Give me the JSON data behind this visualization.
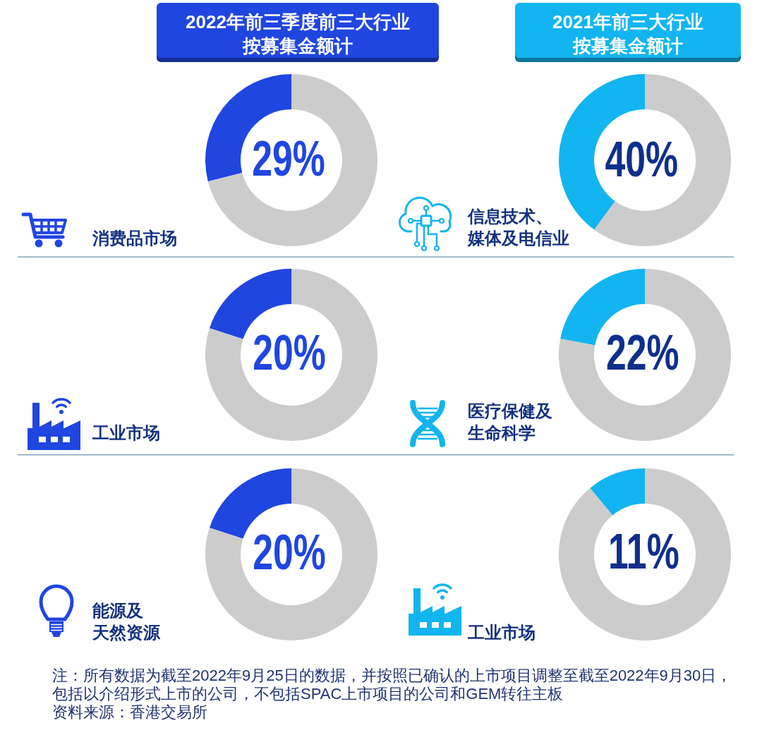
{
  "chart_data": [
    {
      "type": "donut",
      "title": "2022年前三季度前三大行业按募集金额计",
      "categories": [
        "消费品市场",
        null
      ],
      "values": [
        29,
        71
      ],
      "colors": [
        "#2046e0",
        "#cccccc"
      ],
      "value_labels": [
        "29%",
        null
      ]
    },
    {
      "type": "donut",
      "title": "2021年前三大行业按募集金额计",
      "categories": [
        "信息技术、媒体及电信业",
        null
      ],
      "values": [
        40,
        60
      ],
      "colors": [
        "#12b5ef",
        "#cccccc"
      ],
      "value_labels": [
        "40%",
        null
      ]
    },
    {
      "type": "donut",
      "categories": [
        "工业市场",
        null
      ],
      "values": [
        20,
        80
      ],
      "colors": [
        "#2046e0",
        "#cccccc"
      ],
      "value_labels": [
        "20%",
        null
      ]
    },
    {
      "type": "donut",
      "categories": [
        "医疗保健及生命科学",
        null
      ],
      "values": [
        22,
        78
      ],
      "colors": [
        "#12b5ef",
        "#cccccc"
      ],
      "value_labels": [
        "22%",
        null
      ]
    },
    {
      "type": "donut",
      "categories": [
        "能源及天然资源",
        null
      ],
      "values": [
        20,
        80
      ],
      "colors": [
        "#2046e0",
        "#cccccc"
      ],
      "value_labels": [
        "20%",
        null
      ]
    },
    {
      "type": "donut",
      "categories": [
        "工业市场",
        null
      ],
      "values": [
        11,
        89
      ],
      "colors": [
        "#12b5ef",
        "#cccccc"
      ],
      "value_labels": [
        "11%",
        null
      ]
    },
    {
      "type": "other",
      "annotations": [
        "注：所有数据为截至2022年9月25日的数据，并按照已确认的上市项目调整至截至2022年9月30日，包括以介绍形式上市的公司，不包括SPAC上市项目的公司和GEM转往主板",
        "资料来源：香港交易所"
      ]
    }
  ]
}
